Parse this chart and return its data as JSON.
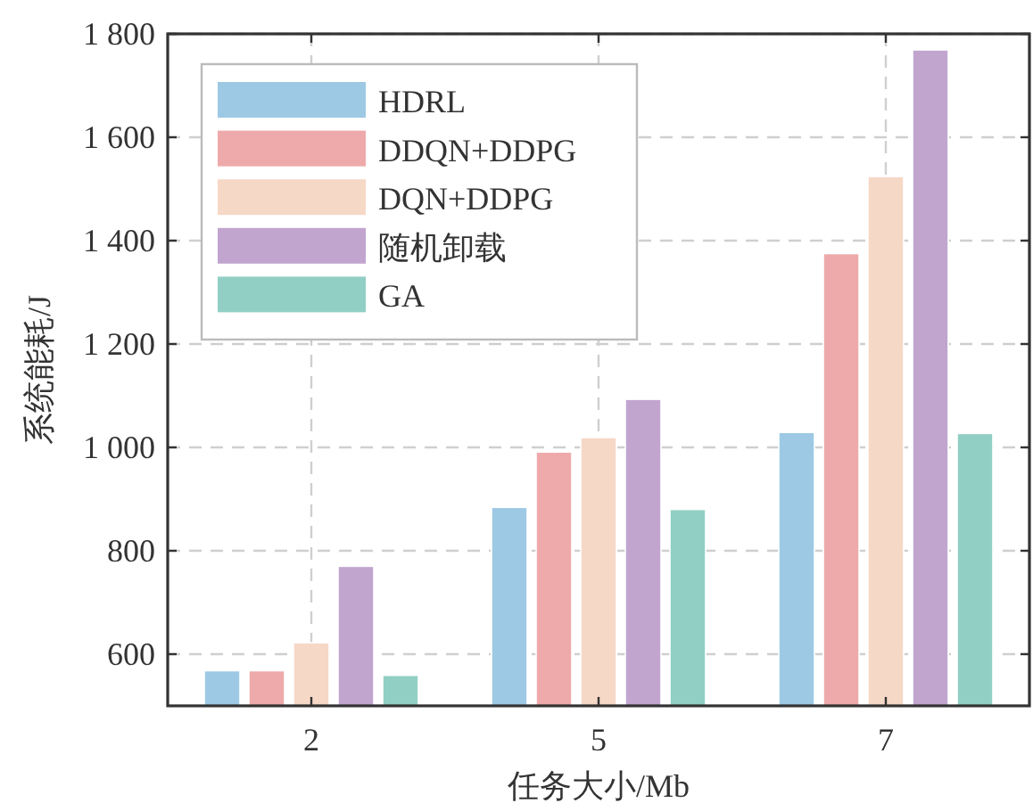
{
  "chart_data": {
    "type": "bar",
    "xlabel": "任务大小/Mb",
    "ylabel": "系统能耗/J",
    "categories": [
      "2",
      "5",
      "7"
    ],
    "series": [
      {
        "name": "HDRL",
        "color": "#9dc9e4",
        "values": [
          568,
          884,
          1029
        ]
      },
      {
        "name": "DDQN+DDPG",
        "color": "#eeaaaa",
        "values": [
          568,
          991,
          1375
        ]
      },
      {
        "name": "DQN+DDPG",
        "color": "#f6d8c6",
        "values": [
          622,
          1019,
          1524
        ]
      },
      {
        "name": "随机卸载",
        "color": "#c1a5cf",
        "values": [
          770,
          1093,
          1769
        ]
      },
      {
        "name": "GA",
        "color": "#91cfc4",
        "values": [
          559,
          880,
          1027
        ]
      }
    ],
    "ylim": [
      500,
      1800
    ],
    "yticks": [
      600,
      800,
      {
        "value": 1000,
        "label": "1 000"
      },
      {
        "value": 1200,
        "label": "1 200"
      },
      {
        "value": 1400,
        "label": "1 400"
      },
      {
        "value": 1600,
        "label": "1 600"
      },
      {
        "value": 1800,
        "label": "1 800"
      }
    ],
    "grid": true,
    "legend": "top left"
  }
}
